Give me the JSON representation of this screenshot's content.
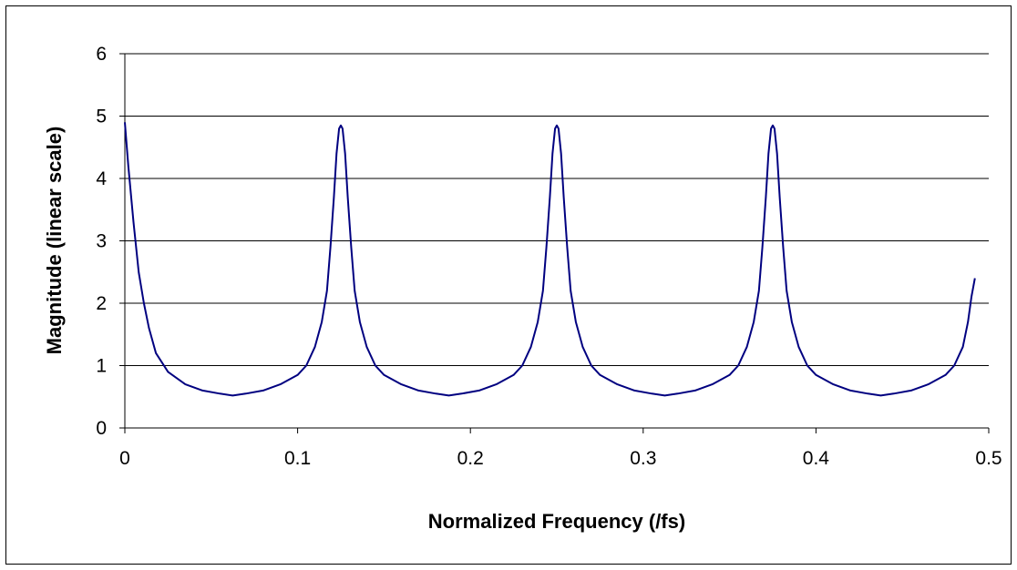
{
  "chart_data": {
    "type": "line",
    "title": "",
    "xlabel": "Normalized Frequency (/fs)",
    "ylabel": "Magnitude (linear scale)",
    "xlim": [
      0,
      0.5
    ],
    "ylim": [
      0,
      6
    ],
    "xticks": [
      "0",
      "0.1",
      "0.2",
      "0.3",
      "0.4",
      "0.5"
    ],
    "yticks": [
      "0",
      "1",
      "2",
      "3",
      "4",
      "5",
      "6"
    ],
    "grid": "horizontal",
    "legend": "none",
    "series": [
      {
        "color": "#000080",
        "x": [
          0,
          0.002,
          0.005,
          0.008,
          0.011,
          0.014,
          0.018,
          0.025,
          0.035,
          0.045,
          0.055,
          0.0625,
          0.07,
          0.08,
          0.09,
          0.1,
          0.105,
          0.11,
          0.114,
          0.117,
          0.119,
          0.121,
          0.1225,
          0.124,
          0.125,
          0.126,
          0.1275,
          0.129,
          0.131,
          0.133,
          0.136,
          0.14,
          0.145,
          0.15,
          0.16,
          0.17,
          0.18,
          0.1875,
          0.195,
          0.205,
          0.215,
          0.225,
          0.23,
          0.235,
          0.239,
          0.242,
          0.244,
          0.246,
          0.2475,
          0.249,
          0.25,
          0.251,
          0.2525,
          0.254,
          0.256,
          0.258,
          0.261,
          0.265,
          0.27,
          0.275,
          0.285,
          0.295,
          0.305,
          0.3125,
          0.32,
          0.33,
          0.34,
          0.35,
          0.355,
          0.36,
          0.364,
          0.367,
          0.369,
          0.371,
          0.3725,
          0.374,
          0.375,
          0.376,
          0.3775,
          0.379,
          0.381,
          0.383,
          0.386,
          0.39,
          0.395,
          0.4,
          0.41,
          0.42,
          0.43,
          0.4375,
          0.445,
          0.455,
          0.465,
          0.475,
          0.48,
          0.485,
          0.488,
          0.49,
          0.492
        ],
        "y": [
          4.9,
          4.2,
          3.3,
          2.5,
          2.0,
          1.6,
          1.2,
          0.9,
          0.7,
          0.6,
          0.55,
          0.52,
          0.55,
          0.6,
          0.7,
          0.85,
          1.0,
          1.3,
          1.7,
          2.2,
          2.9,
          3.7,
          4.4,
          4.8,
          4.85,
          4.8,
          4.4,
          3.7,
          2.9,
          2.2,
          1.7,
          1.3,
          1.0,
          0.85,
          0.7,
          0.6,
          0.55,
          0.52,
          0.55,
          0.6,
          0.7,
          0.85,
          1.0,
          1.3,
          1.7,
          2.2,
          2.9,
          3.7,
          4.4,
          4.8,
          4.85,
          4.8,
          4.4,
          3.7,
          2.9,
          2.2,
          1.7,
          1.3,
          1.0,
          0.85,
          0.7,
          0.6,
          0.55,
          0.52,
          0.55,
          0.6,
          0.7,
          0.85,
          1.0,
          1.3,
          1.7,
          2.2,
          2.9,
          3.7,
          4.4,
          4.8,
          4.85,
          4.8,
          4.4,
          3.7,
          2.9,
          2.2,
          1.7,
          1.3,
          1.0,
          0.85,
          0.7,
          0.6,
          0.55,
          0.52,
          0.55,
          0.6,
          0.7,
          0.85,
          1.0,
          1.3,
          1.7,
          2.1,
          2.4
        ]
      }
    ]
  }
}
